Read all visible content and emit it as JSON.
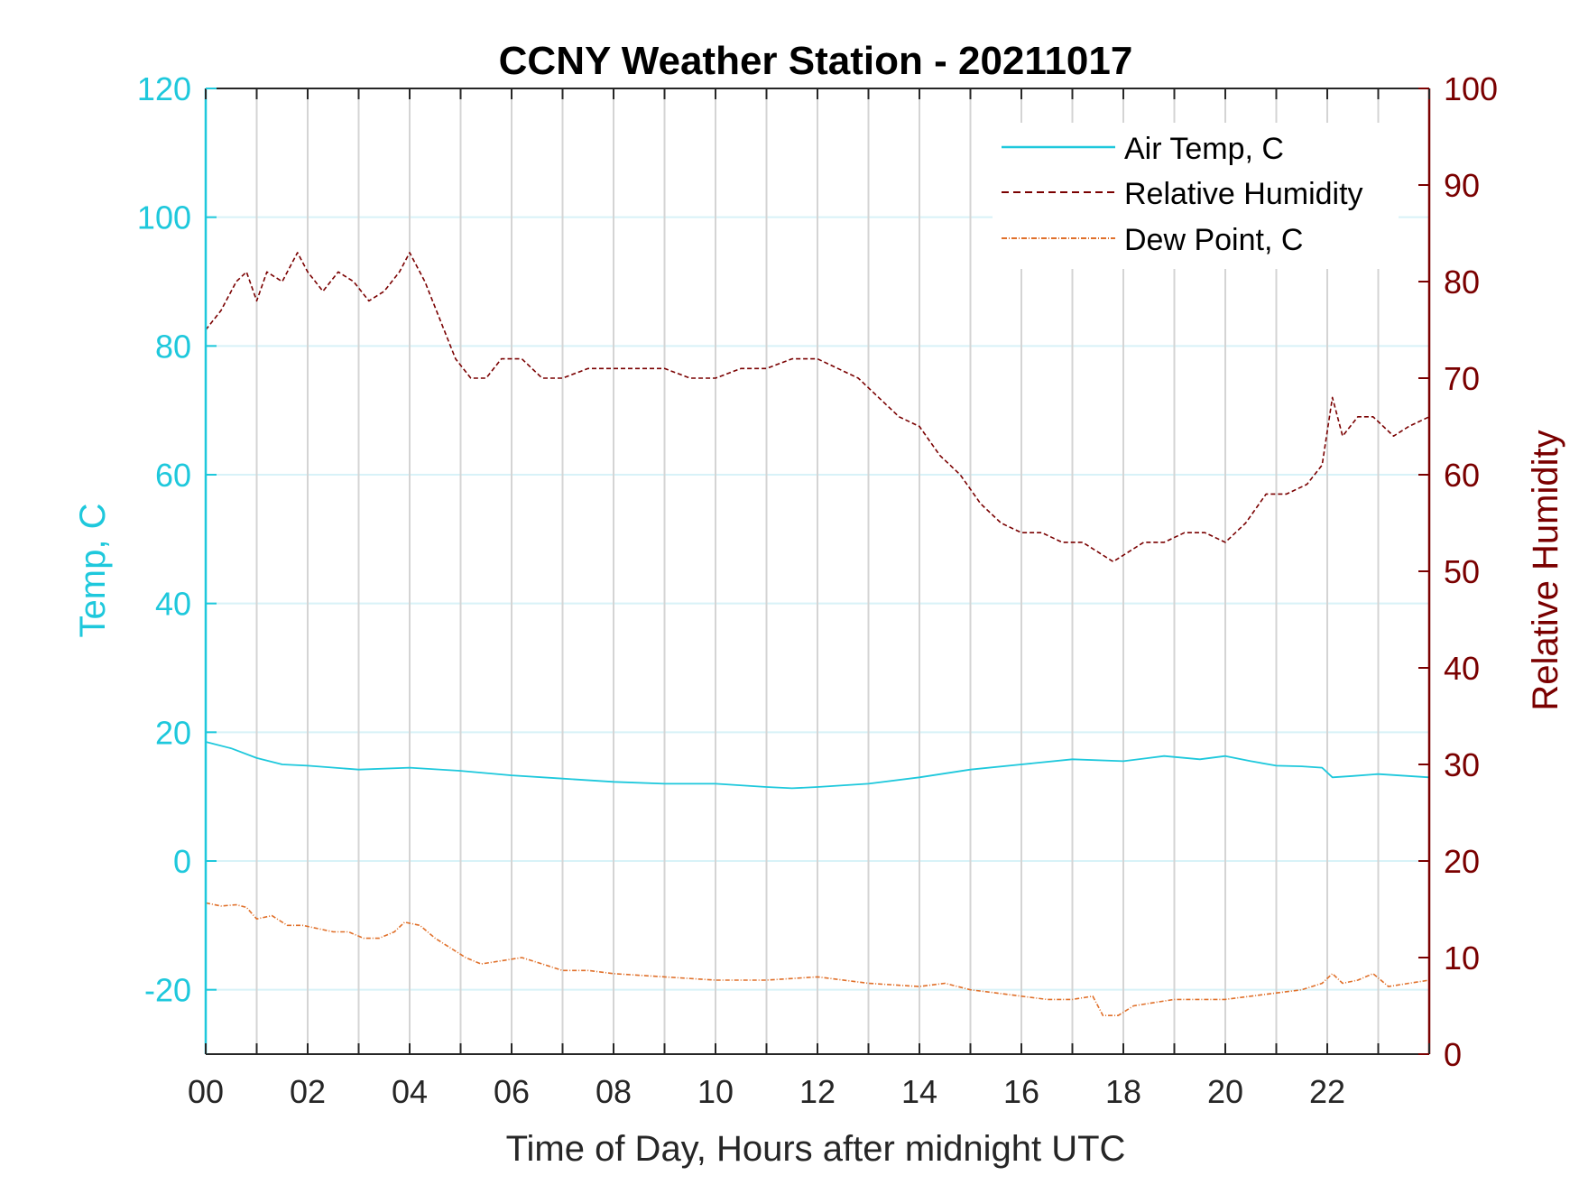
{
  "chart_data": {
    "type": "line",
    "title": "CCNY Weather Station - 20211017",
    "xlabel": "Time of Day, Hours after midnight UTC",
    "ylabel_left": "Temp, C",
    "ylabel_right": "Relative Humidity",
    "xlim": [
      0,
      24
    ],
    "ylim_left": [
      -30,
      120
    ],
    "ylim_right": [
      0,
      100
    ],
    "x_ticks": [
      0,
      2,
      4,
      6,
      8,
      10,
      12,
      14,
      16,
      18,
      20,
      22
    ],
    "x_tick_labels": [
      "00",
      "02",
      "04",
      "06",
      "08",
      "10",
      "12",
      "14",
      "16",
      "18",
      "20",
      "22"
    ],
    "y_left_ticks": [
      -20,
      0,
      20,
      40,
      60,
      80,
      100,
      120
    ],
    "y_left_tick_labels": [
      "-20",
      "0",
      "20",
      "40",
      "60",
      "80",
      "100",
      "120"
    ],
    "y_right_ticks": [
      0,
      10,
      20,
      30,
      40,
      50,
      60,
      70,
      80,
      90,
      100
    ],
    "y_right_tick_labels": [
      "0",
      "10",
      "20",
      "30",
      "40",
      "50",
      "60",
      "70",
      "80",
      "90",
      "100"
    ],
    "grid": "vertical lines every hour, horizontal lines at left-axis ticks",
    "legend_position": "top-right",
    "colors": {
      "temp": "#1ec8dc",
      "rh": "#7a0000",
      "dew": "#e0702a",
      "grid_v": "#d4d4d4",
      "grid_h": "#d8f2f8"
    },
    "series": [
      {
        "name": "Air Temp, C",
        "axis": "left",
        "style": "solid",
        "x": [
          0,
          0.5,
          1.0,
          1.5,
          2.0,
          3.0,
          4.0,
          5.0,
          6.0,
          7.0,
          8.0,
          9.0,
          10.0,
          11.0,
          11.5,
          12.0,
          13.0,
          14.0,
          15.0,
          16.0,
          17.0,
          18.0,
          18.8,
          19.5,
          20.0,
          20.5,
          21.0,
          21.5,
          21.9,
          22.1,
          22.5,
          23.0,
          24.0
        ],
        "y": [
          18.5,
          17.5,
          16.0,
          15.0,
          14.8,
          14.2,
          14.5,
          14.0,
          13.3,
          12.8,
          12.3,
          12.0,
          12.0,
          11.5,
          11.3,
          11.5,
          12.0,
          13.0,
          14.2,
          15.0,
          15.8,
          15.5,
          16.3,
          15.8,
          16.3,
          15.5,
          14.8,
          14.7,
          14.5,
          13.0,
          13.2,
          13.5,
          13.0
        ]
      },
      {
        "name": "Relative Humidity",
        "axis": "right",
        "style": "dashed",
        "x": [
          0,
          0.3,
          0.6,
          0.8,
          1.0,
          1.2,
          1.5,
          1.8,
          2.0,
          2.3,
          2.6,
          2.9,
          3.2,
          3.5,
          3.8,
          4.0,
          4.3,
          4.6,
          4.9,
          5.2,
          5.5,
          5.8,
          6.2,
          6.6,
          7.0,
          7.5,
          8.0,
          8.5,
          9.0,
          9.5,
          10.0,
          10.5,
          11.0,
          11.5,
          12.0,
          12.4,
          12.8,
          13.2,
          13.6,
          14.0,
          14.4,
          14.8,
          15.2,
          15.6,
          16.0,
          16.4,
          16.8,
          17.2,
          17.5,
          17.8,
          18.1,
          18.4,
          18.8,
          19.2,
          19.6,
          20.0,
          20.4,
          20.8,
          21.2,
          21.6,
          21.9,
          22.1,
          22.3,
          22.6,
          22.9,
          23.3,
          23.6,
          24.0
        ],
        "y": [
          75,
          77,
          80,
          81,
          78,
          81,
          80,
          83,
          81,
          79,
          81,
          80,
          78,
          79,
          81,
          83,
          80,
          76,
          72,
          70,
          70,
          72,
          72,
          70,
          70,
          71,
          71,
          71,
          71,
          70,
          70,
          71,
          71,
          72,
          72,
          71,
          70,
          68,
          66,
          65,
          62,
          60,
          57,
          55,
          54,
          54,
          53,
          53,
          52,
          51,
          52,
          53,
          53,
          54,
          54,
          53,
          55,
          58,
          58,
          59,
          61,
          68,
          64,
          66,
          66,
          64,
          65,
          66
        ]
      },
      {
        "name": "Dew Point, C",
        "axis": "left",
        "style": "dash-dot",
        "x": [
          0,
          0.3,
          0.6,
          0.8,
          1.0,
          1.3,
          1.6,
          1.9,
          2.2,
          2.5,
          2.8,
          3.1,
          3.4,
          3.7,
          3.9,
          4.2,
          4.5,
          4.8,
          5.1,
          5.4,
          5.8,
          6.2,
          6.6,
          7.0,
          7.5,
          8.0,
          9.0,
          10.0,
          11.0,
          12.0,
          13.0,
          14.0,
          14.5,
          15.0,
          15.5,
          16.0,
          16.5,
          17.0,
          17.4,
          17.6,
          17.9,
          18.2,
          18.6,
          19.0,
          19.5,
          20.0,
          20.5,
          21.0,
          21.5,
          21.9,
          22.1,
          22.3,
          22.6,
          22.9,
          23.2,
          23.6,
          24.0
        ],
        "y": [
          -6.5,
          -7.0,
          -6.8,
          -7.2,
          -9.0,
          -8.5,
          -10.0,
          -10.0,
          -10.5,
          -11.0,
          -11.0,
          -12.0,
          -12.0,
          -11.0,
          -9.5,
          -10.0,
          -12.0,
          -13.5,
          -15.0,
          -16.0,
          -15.5,
          -15.0,
          -16.0,
          -17.0,
          -17.0,
          -17.5,
          -18.0,
          -18.5,
          -18.5,
          -18.0,
          -19.0,
          -19.5,
          -19.0,
          -20.0,
          -20.5,
          -21.0,
          -21.5,
          -21.5,
          -21.0,
          -24.0,
          -24.0,
          -22.5,
          -22.0,
          -21.5,
          -21.5,
          -21.5,
          -21.0,
          -20.5,
          -20.0,
          -19.0,
          -17.5,
          -19.0,
          -18.5,
          -17.5,
          -19.5,
          -19.0,
          -18.5
        ]
      }
    ]
  }
}
